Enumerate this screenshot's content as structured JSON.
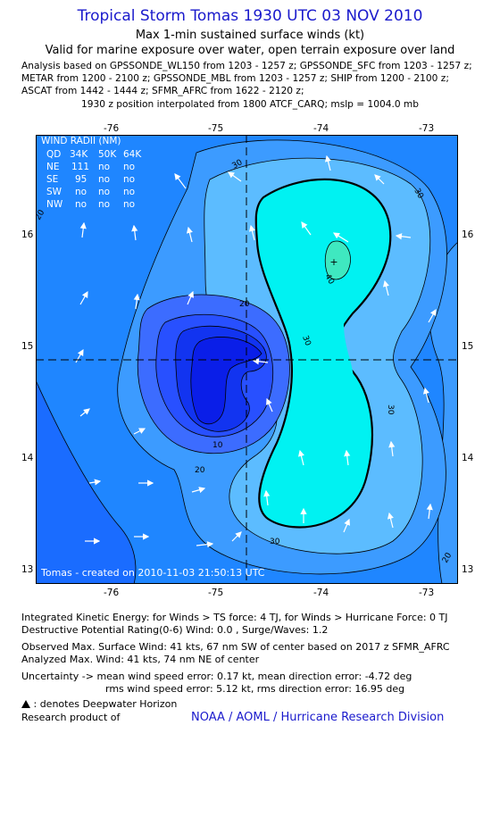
{
  "header": {
    "title": "Tropical Storm Tomas 1930 UTC 03 NOV 2010",
    "subtitle1": "Max 1-min sustained surface winds (kt)",
    "subtitle2": "Valid for marine exposure over water, open terrain exposure over land",
    "sources": [
      "Analysis based on GPSSONDE_WL150 from 1203 - 1257 z; GPSSONDE_SFC from 1203 - 1257 z;",
      "METAR from 1200 - 2100 z; GPSSONDE_MBL from 1203 - 1257 z; SHIP from 1200 - 2100 z;",
      "ASCAT from 1442 - 1444 z; SFMR_AFRC from 1622 - 2120 z;"
    ],
    "position_note": "1930 z position interpolated from 1800 ATCF_CARQ; mslp = 1004.0 mb"
  },
  "map": {
    "lon_ticks": [
      "-76",
      "-75",
      "-74",
      "-73"
    ],
    "lat_ticks": [
      "16",
      "15",
      "14",
      "13"
    ],
    "contour_labels": [
      "30",
      "30",
      "30",
      "30",
      "40",
      "40",
      "20",
      "20",
      "20",
      "20",
      "10",
      "10"
    ],
    "footer": "Tomas - created on 2010-11-03 21:50:13 UTC",
    "colors": {
      "level_0": "#1f86ff",
      "level_10": "#1a6cff",
      "level_20": "#3c9bff",
      "level_30": "#5cbcff",
      "level_40": "#00f2f2",
      "level_50": "#3fe8c0",
      "inner_1": "#3c6cff",
      "inner_2": "#2850ff",
      "inner_3": "#1234f0",
      "inner_4": "#0a1ee8"
    },
    "wind_radii": {
      "title": "WIND RADII (NM)",
      "header": [
        "QD",
        "34K",
        "50K",
        "64K"
      ],
      "rows": [
        [
          "NE",
          "111",
          "no",
          "no"
        ],
        [
          "SE",
          "95",
          "no",
          "no"
        ],
        [
          "SW",
          "no",
          "no",
          "no"
        ],
        [
          "NW",
          "no",
          "no",
          "no"
        ]
      ]
    }
  },
  "info": {
    "ike": "Integrated Kinetic Energy:  for Winds > TS force: 4 TJ,  for Winds > Hurricane Force: 0 TJ",
    "dpr": "Destructive Potential Rating(0-6)   Wind: 0.0 , Surge/Waves: 1.2",
    "observed": "Observed Max. Surface Wind: 41 kts, 67 nm SW of center based on 2017 z SFMR_AFRC",
    "analyzed": "Analyzed Max. Wind: 41 kts, 74 nm NE of center",
    "uncert1": "Uncertainty -> mean wind speed error: 0.17 kt,   mean direction error:  -4.72 deg",
    "uncert2": "rms wind speed error: 5.12 kt,   rms direction error: 16.95 deg",
    "dwh": ": denotes Deepwater Horizon",
    "research": "Research product of",
    "credit": "NOAA / AOML / Hurricane Research Division"
  }
}
